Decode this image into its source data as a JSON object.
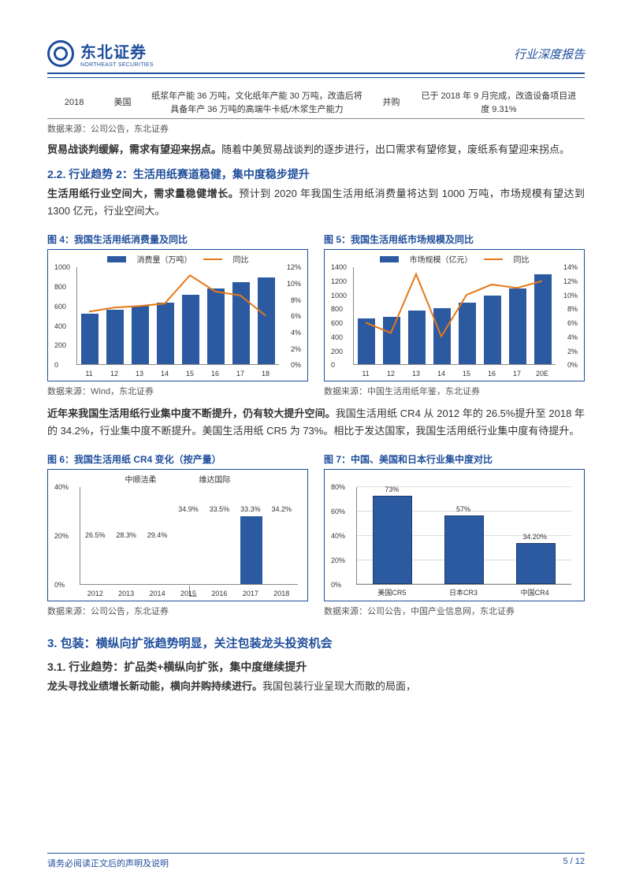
{
  "header": {
    "logo_cn": "东北证券",
    "logo_en": "NORTHEAST SECURITIES",
    "doc_type": "行业深度报告"
  },
  "table": {
    "r1c1": "2018",
    "r1c2": "美国",
    "r1c3": "纸浆年产能 36 万吨，文化纸年产能 30 万吨，改造后将具备年产 36 万吨的高端牛卡纸/木浆生产能力",
    "r1c4": "并购",
    "r1c5": "已于 2018 年 9 月完成，改造设备项目进度 9.31%"
  },
  "source1": "数据来源：公司公告，东北证券",
  "para1_bold": "贸易战谈判缓解，需求有望迎来拐点。",
  "para1_rest": "随着中美贸易战谈判的逐步进行，出口需求有望修复，废纸系有望迎来拐点。",
  "sec22": "2.2.  行业趋势 2：生活用纸赛道稳健，集中度稳步提升",
  "para2_bold": "生活用纸行业空间大，需求量稳健增长。",
  "para2_rest": "预计到 2020 年我国生活用纸消费量将达到 1000 万吨，市场规模有望达到 1300 亿元，行业空间大。",
  "fig4": {
    "title": "图 4：我国生活用纸消费量及同比",
    "legend_bar": "消费量（万吨）",
    "legend_line": "同比",
    "bar_color": "#2c5aa0",
    "line_color": "#e67817",
    "y_left": [
      0,
      200,
      400,
      600,
      800,
      1000
    ],
    "y_right": [
      "0%",
      "2%",
      "4%",
      "6%",
      "8%",
      "10%",
      "12%"
    ],
    "x": [
      "11",
      "12",
      "13",
      "14",
      "15",
      "16",
      "17",
      "18"
    ],
    "bars": [
      520,
      560,
      600,
      640,
      720,
      780,
      850,
      900
    ],
    "line_pct": [
      6.5,
      7.0,
      7.2,
      7.5,
      11.0,
      9.0,
      8.5,
      6.0
    ]
  },
  "fig5": {
    "title": "图 5：我国生活用纸市场规模及同比",
    "legend_bar": "市场规模（亿元）",
    "legend_line": "同比",
    "bar_color": "#2c5aa0",
    "line_color": "#e67817",
    "y_left": [
      0,
      200,
      400,
      600,
      800,
      1000,
      1200,
      1400
    ],
    "y_right": [
      "0%",
      "2%",
      "4%",
      "6%",
      "8%",
      "10%",
      "12%",
      "14%"
    ],
    "x": [
      "11",
      "12",
      "13",
      "14",
      "15",
      "16",
      "17",
      "20E"
    ],
    "bars": [
      660,
      690,
      780,
      810,
      890,
      990,
      1100,
      1300
    ],
    "line_pct": [
      6.0,
      4.5,
      13.0,
      4.0,
      10.0,
      11.5,
      11.0,
      12.0
    ]
  },
  "source_fig4": "数据来源：Wind，东北证券",
  "source_fig5": "数据来源：中国生活用纸年鉴，东北证券",
  "para3_bold": "近年来我国生活用纸行业集中度不断提升，仍有较大提升空间。",
  "para3_rest": "我国生活用纸 CR4 从 2012 年的 26.5%提升至 2018 年的 34.2%，行业集中度不断提升。美国生活用纸 CR5 为 73%。相比于发达国家，我国生活用纸行业集中度有待提升。",
  "fig6": {
    "title": "图 6：我国生活用纸 CR4 变化（按产量）",
    "series1": "中顺洁柔",
    "series2": "维达国际",
    "y": [
      "0%",
      "20%",
      "40%"
    ],
    "x": [
      "2012",
      "2013",
      "2014",
      "2015",
      "2016",
      "2017",
      "2018"
    ],
    "labels": [
      "26.5%",
      "28.3%",
      "29.4%",
      "34.9%",
      "33.5%",
      "33.3%",
      "34.2%"
    ],
    "highlight_bar": {
      "x_index": 5,
      "height_pct": 28,
      "color": "#2c5aa0"
    }
  },
  "fig7": {
    "title": "图 7：中国、美国和日本行业集中度对比",
    "y": [
      "0%",
      "20%",
      "40%",
      "60%",
      "80%"
    ],
    "x": [
      "美国CR5",
      "日本CR3",
      "中国CR4"
    ],
    "values": [
      73,
      57,
      34.2
    ],
    "labels": [
      "73%",
      "57%",
      "34.20%"
    ],
    "bar_color": "#2c5aa0"
  },
  "source_fig6": "数据来源：公司公告，东北证券",
  "source_fig7": "数据来源：公司公告，中国产业信息网，东北证券",
  "sec3": "3.  包装：横纵向扩张趋势明显，关注包装龙头投资机会",
  "sec31": "3.1.  行业趋势：扩品类+横纵向扩张，集中度继续提升",
  "para4_bold": "龙头寻找业绩增长新动能，横向并购持续进行。",
  "para4_rest": "我国包装行业呈现大而散的局面，",
  "footer": {
    "left": "请务必阅读正文后的声明及说明",
    "right": "5 / 12"
  }
}
